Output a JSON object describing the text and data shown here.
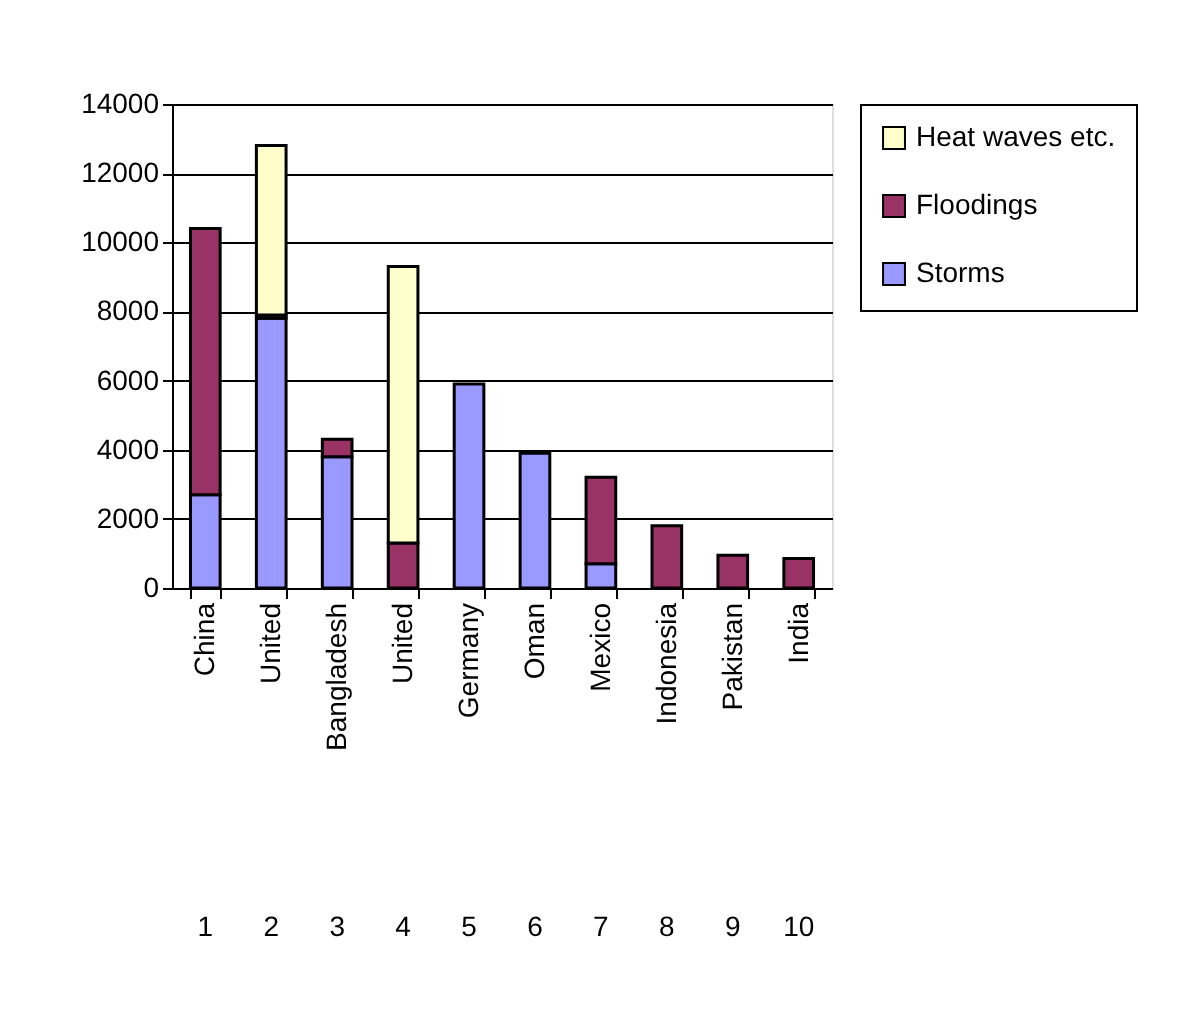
{
  "chart_data": {
    "type": "bar",
    "stacked": true,
    "categories": [
      "China",
      "United",
      "Bangladesh",
      "United",
      "Germany",
      "Oman",
      "Mexico",
      "Indonesia",
      "Pakistan",
      "India"
    ],
    "series": [
      {
        "name": "Storms",
        "color": "#9999ff",
        "values": [
          2700,
          7800,
          3800,
          null,
          5900,
          3900,
          700,
          null,
          null,
          null
        ]
      },
      {
        "name": "Floodings",
        "color": "#993366",
        "values": [
          7700,
          100,
          500,
          1300,
          null,
          null,
          2500,
          1800,
          950,
          850
        ]
      },
      {
        "name": "Heat waves etc.",
        "color": "#ffffcc",
        "values": [
          null,
          4900,
          null,
          8000,
          null,
          null,
          null,
          null,
          null,
          null
        ]
      }
    ],
    "annotations": [
      "1",
      "2",
      "3",
      "4",
      "5",
      "6",
      "7",
      "8",
      "9",
      "10"
    ],
    "ylim": [
      0,
      14000
    ],
    "yticks": [
      0,
      2000,
      4000,
      6000,
      8000,
      10000,
      12000,
      14000
    ],
    "grid": "y",
    "legend": "right"
  }
}
